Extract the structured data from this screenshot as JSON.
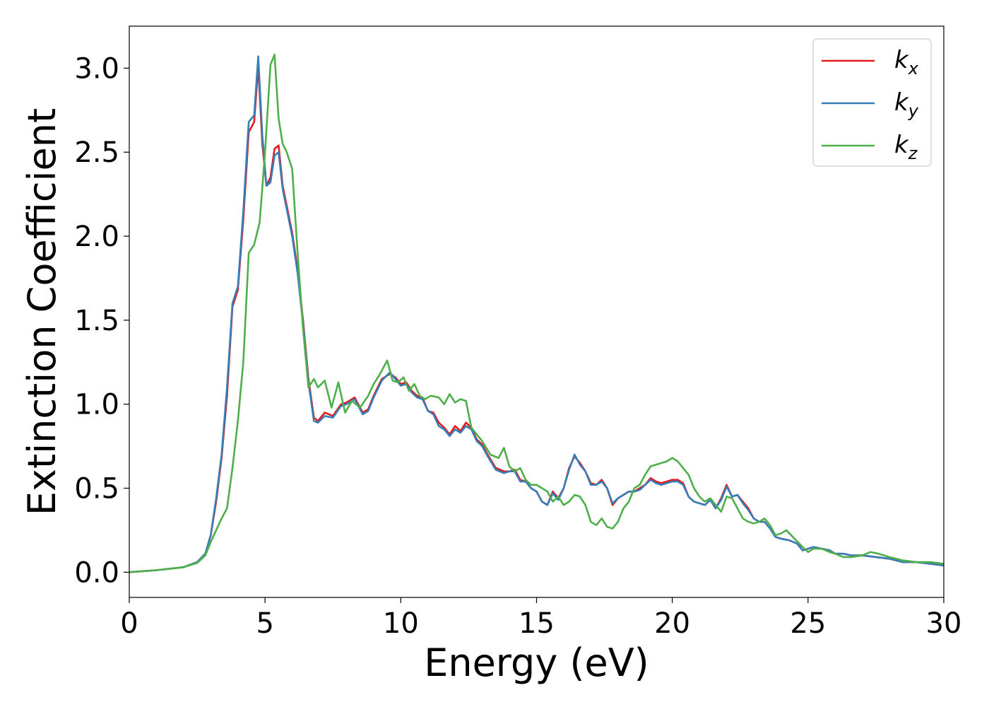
{
  "chart_data": {
    "type": "line",
    "xlabel": "Energy (eV)",
    "ylabel": "Extinction Coefficient",
    "xlim": [
      0,
      30
    ],
    "ylim": [
      -0.15,
      3.25
    ],
    "xticks": [
      "0",
      "5",
      "10",
      "15",
      "20",
      "25",
      "30"
    ],
    "yticks": [
      "0.0",
      "0.5",
      "1.0",
      "1.5",
      "2.0",
      "2.5",
      "3.0"
    ],
    "grid": false,
    "legend_position": "top-right",
    "series": [
      {
        "name": "k",
        "name_sub": "x",
        "color": "#e41a1c",
        "x": [
          0,
          1,
          2,
          2.5,
          2.8,
          3,
          3.2,
          3.4,
          3.6,
          3.8,
          4,
          4.2,
          4.4,
          4.6,
          4.75,
          4.9,
          5.05,
          5.2,
          5.35,
          5.5,
          5.65,
          5.8,
          6,
          6.2,
          6.4,
          6.6,
          6.8,
          6.95,
          7.2,
          7.5,
          7.8,
          8,
          8.3,
          8.6,
          8.8,
          9,
          9.3,
          9.6,
          9.8,
          10,
          10.2,
          10.4,
          10.6,
          10.8,
          11,
          11.2,
          11.4,
          11.6,
          11.8,
          12,
          12.2,
          12.4,
          12.6,
          12.8,
          13,
          13.2,
          13.5,
          13.8,
          14,
          14.2,
          14.4,
          14.6,
          14.8,
          15,
          15.2,
          15.4,
          15.6,
          15.8,
          16,
          16.2,
          16.4,
          16.6,
          16.8,
          17,
          17.2,
          17.4,
          17.6,
          17.8,
          18,
          18.2,
          18.4,
          18.6,
          18.8,
          19,
          19.2,
          19.4,
          19.6,
          19.8,
          20,
          20.2,
          20.4,
          20.6,
          20.8,
          21,
          21.2,
          21.4,
          21.6,
          21.8,
          22,
          22.2,
          22.4,
          22.6,
          22.8,
          23,
          23.2,
          23.4,
          23.6,
          23.8,
          24,
          24.3,
          24.6,
          24.8,
          25,
          25.2,
          25.5,
          25.8,
          26,
          26.3,
          26.6,
          27,
          27.5,
          28,
          28.5,
          29,
          29.5,
          30
        ],
        "y": [
          0,
          0.012,
          0.03,
          0.06,
          0.11,
          0.22,
          0.42,
          0.68,
          1.05,
          1.58,
          1.68,
          2.1,
          2.62,
          2.68,
          3.01,
          2.55,
          2.3,
          2.35,
          2.52,
          2.54,
          2.3,
          2.18,
          2.02,
          1.8,
          1.5,
          1.15,
          0.92,
          0.9,
          0.95,
          0.93,
          1.0,
          1.01,
          1.04,
          0.95,
          0.97,
          1.05,
          1.15,
          1.18,
          1.16,
          1.12,
          1.13,
          1.08,
          1.05,
          1.04,
          0.96,
          0.95,
          0.89,
          0.86,
          0.82,
          0.87,
          0.84,
          0.89,
          0.86,
          0.79,
          0.76,
          0.7,
          0.62,
          0.6,
          0.6,
          0.61,
          0.55,
          0.54,
          0.5,
          0.48,
          0.42,
          0.4,
          0.48,
          0.44,
          0.5,
          0.62,
          0.69,
          0.65,
          0.6,
          0.53,
          0.52,
          0.55,
          0.5,
          0.4,
          0.44,
          0.46,
          0.48,
          0.48,
          0.5,
          0.52,
          0.56,
          0.54,
          0.53,
          0.54,
          0.55,
          0.55,
          0.53,
          0.45,
          0.42,
          0.41,
          0.4,
          0.43,
          0.38,
          0.44,
          0.52,
          0.45,
          0.46,
          0.42,
          0.38,
          0.32,
          0.3,
          0.3,
          0.26,
          0.21,
          0.2,
          0.19,
          0.17,
          0.13,
          0.14,
          0.15,
          0.14,
          0.13,
          0.11,
          0.11,
          0.1,
          0.1,
          0.09,
          0.08,
          0.06,
          0.06,
          0.05,
          0.04
        ]
      },
      {
        "name": "k",
        "name_sub": "y",
        "color": "#377eb8",
        "x": [
          0,
          1,
          2,
          2.5,
          2.8,
          3,
          3.2,
          3.4,
          3.6,
          3.8,
          4,
          4.2,
          4.4,
          4.6,
          4.75,
          4.9,
          5.05,
          5.2,
          5.35,
          5.5,
          5.65,
          5.8,
          6,
          6.2,
          6.4,
          6.6,
          6.8,
          6.95,
          7.2,
          7.5,
          7.8,
          8,
          8.3,
          8.6,
          8.8,
          9,
          9.3,
          9.6,
          9.8,
          10,
          10.2,
          10.4,
          10.6,
          10.8,
          11,
          11.2,
          11.4,
          11.6,
          11.8,
          12,
          12.2,
          12.4,
          12.6,
          12.8,
          13,
          13.2,
          13.5,
          13.8,
          14,
          14.2,
          14.4,
          14.6,
          14.8,
          15,
          15.2,
          15.4,
          15.6,
          15.8,
          16,
          16.2,
          16.4,
          16.6,
          16.8,
          17,
          17.2,
          17.4,
          17.6,
          17.8,
          18,
          18.2,
          18.4,
          18.6,
          18.8,
          19,
          19.2,
          19.4,
          19.6,
          19.8,
          20,
          20.2,
          20.4,
          20.6,
          20.8,
          21,
          21.2,
          21.4,
          21.6,
          21.8,
          22,
          22.2,
          22.4,
          22.6,
          22.8,
          23,
          23.2,
          23.4,
          23.6,
          23.8,
          24,
          24.3,
          24.6,
          24.8,
          25,
          25.2,
          25.5,
          25.8,
          26,
          26.3,
          26.6,
          27,
          27.5,
          28,
          28.5,
          29,
          29.5,
          30
        ],
        "y": [
          0,
          0.012,
          0.03,
          0.06,
          0.11,
          0.22,
          0.44,
          0.7,
          1.1,
          1.6,
          1.7,
          2.15,
          2.68,
          2.72,
          3.07,
          2.6,
          2.3,
          2.32,
          2.48,
          2.5,
          2.28,
          2.16,
          2.0,
          1.78,
          1.48,
          1.13,
          0.9,
          0.89,
          0.93,
          0.92,
          0.99,
          1.0,
          1.03,
          0.94,
          0.96,
          1.04,
          1.14,
          1.19,
          1.15,
          1.11,
          1.12,
          1.07,
          1.04,
          1.03,
          0.96,
          0.94,
          0.87,
          0.85,
          0.81,
          0.85,
          0.83,
          0.87,
          0.85,
          0.78,
          0.75,
          0.69,
          0.61,
          0.59,
          0.6,
          0.6,
          0.54,
          0.54,
          0.5,
          0.48,
          0.42,
          0.4,
          0.47,
          0.43,
          0.5,
          0.61,
          0.7,
          0.64,
          0.6,
          0.52,
          0.52,
          0.54,
          0.5,
          0.41,
          0.44,
          0.46,
          0.48,
          0.48,
          0.49,
          0.52,
          0.55,
          0.53,
          0.52,
          0.53,
          0.54,
          0.54,
          0.52,
          0.45,
          0.42,
          0.41,
          0.4,
          0.43,
          0.38,
          0.43,
          0.51,
          0.45,
          0.46,
          0.41,
          0.37,
          0.32,
          0.3,
          0.3,
          0.26,
          0.21,
          0.2,
          0.19,
          0.17,
          0.13,
          0.14,
          0.15,
          0.14,
          0.13,
          0.11,
          0.11,
          0.1,
          0.1,
          0.09,
          0.08,
          0.06,
          0.06,
          0.05,
          0.04
        ]
      },
      {
        "name": "k",
        "name_sub": "z",
        "color": "#4daf4a",
        "x": [
          0,
          1,
          2,
          2.5,
          2.8,
          3,
          3.2,
          3.4,
          3.6,
          3.8,
          4,
          4.2,
          4.4,
          4.6,
          4.8,
          5,
          5.2,
          5.35,
          5.5,
          5.65,
          5.8,
          6,
          6.2,
          6.4,
          6.6,
          6.8,
          6.95,
          7.2,
          7.45,
          7.7,
          7.95,
          8.2,
          8.5,
          8.8,
          9,
          9.2,
          9.5,
          9.7,
          9.9,
          10.1,
          10.3,
          10.5,
          10.7,
          10.9,
          11.1,
          11.4,
          11.6,
          11.8,
          12,
          12.2,
          12.4,
          12.6,
          12.8,
          13,
          13.3,
          13.6,
          13.8,
          14,
          14.2,
          14.4,
          14.6,
          14.8,
          15,
          15.2,
          15.4,
          15.6,
          15.8,
          16,
          16.2,
          16.4,
          16.6,
          16.8,
          17,
          17.2,
          17.4,
          17.6,
          17.8,
          18,
          18.2,
          18.4,
          18.6,
          18.8,
          19,
          19.2,
          19.4,
          19.6,
          19.8,
          20,
          20.2,
          20.4,
          20.6,
          20.8,
          21,
          21.2,
          21.4,
          21.6,
          21.8,
          22,
          22.2,
          22.4,
          22.6,
          22.8,
          23,
          23.2,
          23.4,
          23.6,
          23.8,
          24,
          24.2,
          24.5,
          24.8,
          25,
          25.2,
          25.5,
          25.8,
          26,
          26.3,
          26.6,
          27,
          27.3,
          27.6,
          28,
          28.5,
          29,
          29.5,
          30
        ],
        "y": [
          0,
          0.012,
          0.03,
          0.055,
          0.1,
          0.18,
          0.25,
          0.32,
          0.38,
          0.62,
          0.9,
          1.25,
          1.9,
          1.95,
          2.08,
          2.5,
          3.02,
          3.08,
          2.7,
          2.55,
          2.5,
          2.4,
          1.9,
          1.45,
          1.1,
          1.15,
          1.1,
          1.14,
          0.98,
          1.13,
          0.95,
          1.02,
          0.98,
          1.05,
          1.12,
          1.17,
          1.26,
          1.14,
          1.13,
          1.16,
          1.08,
          1.12,
          1.05,
          1.03,
          1.05,
          1.04,
          1.0,
          1.06,
          1.01,
          1.03,
          1.02,
          0.86,
          0.82,
          0.78,
          0.7,
          0.68,
          0.74,
          0.63,
          0.6,
          0.62,
          0.55,
          0.52,
          0.52,
          0.5,
          0.48,
          0.42,
          0.45,
          0.4,
          0.42,
          0.46,
          0.45,
          0.4,
          0.3,
          0.28,
          0.32,
          0.27,
          0.26,
          0.3,
          0.38,
          0.42,
          0.5,
          0.52,
          0.58,
          0.63,
          0.64,
          0.65,
          0.66,
          0.68,
          0.66,
          0.62,
          0.58,
          0.5,
          0.45,
          0.42,
          0.44,
          0.4,
          0.36,
          0.45,
          0.44,
          0.38,
          0.32,
          0.3,
          0.29,
          0.3,
          0.32,
          0.28,
          0.22,
          0.23,
          0.25,
          0.2,
          0.15,
          0.12,
          0.14,
          0.14,
          0.12,
          0.11,
          0.09,
          0.09,
          0.1,
          0.12,
          0.11,
          0.09,
          0.07,
          0.06,
          0.06,
          0.05
        ]
      }
    ]
  }
}
